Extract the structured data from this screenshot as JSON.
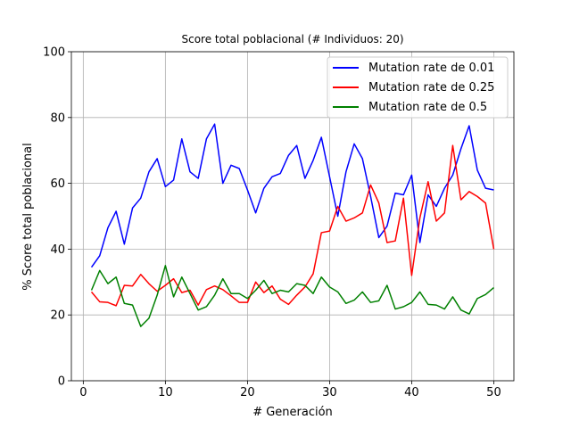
{
  "chart_data": {
    "type": "line",
    "title": "Score total poblacional (# Individuos: 20)",
    "xlabel": "# Generación",
    "ylabel": "% Score total poblacional",
    "xlim": [
      -1.45,
      52.45
    ],
    "ylim": [
      0,
      100
    ],
    "xticks": [
      0,
      10,
      20,
      30,
      40,
      50
    ],
    "yticks": [
      0,
      20,
      40,
      60,
      80,
      100
    ],
    "grid": true,
    "legend_position": "top-right",
    "x": [
      1,
      2,
      3,
      4,
      5,
      6,
      7,
      8,
      9,
      10,
      11,
      12,
      13,
      14,
      15,
      16,
      17,
      18,
      19,
      20,
      21,
      22,
      23,
      24,
      25,
      26,
      27,
      28,
      29,
      30,
      31,
      32,
      33,
      34,
      35,
      36,
      37,
      38,
      39,
      40,
      41,
      42,
      43,
      44,
      45,
      46,
      47,
      48,
      49,
      50
    ],
    "series": [
      {
        "name": "Mutation rate de 0.01",
        "color": "#0000ff",
        "values": [
          34.5,
          38,
          46.5,
          51.5,
          41.5,
          52.5,
          55.5,
          63.5,
          67.5,
          59,
          61,
          73.5,
          63.5,
          61.5,
          73.5,
          78,
          60,
          65.5,
          64.5,
          58,
          51,
          58.5,
          62,
          63,
          68.5,
          71.5,
          61.5,
          67,
          74,
          62,
          50,
          63.5,
          72,
          67.5,
          56,
          43.5,
          47,
          57,
          56.5,
          62.5,
          42,
          56.5,
          53,
          58.5,
          62.5,
          70.5,
          77.5,
          64,
          58.5,
          58
        ]
      },
      {
        "name": "Mutation rate de 0.25",
        "color": "#ff0000",
        "values": [
          27,
          24,
          23.8,
          22.8,
          29,
          28.8,
          32.3,
          29.5,
          27.2,
          29,
          31,
          26.8,
          27.5,
          23,
          27.7,
          28.8,
          27.7,
          25.8,
          23.8,
          23.8,
          30,
          26.8,
          28.8,
          24.8,
          23.2,
          26,
          28.5,
          32.5,
          45,
          45.5,
          53,
          48.5,
          49.5,
          51,
          59.5,
          54,
          42,
          42.5,
          55.5,
          32,
          49.5,
          60.5,
          48.5,
          51,
          71.5,
          55,
          57.5,
          56,
          54,
          40
        ]
      },
      {
        "name": "Mutation rate de 0.5",
        "color": "#008000",
        "values": [
          27.5,
          33.5,
          29.5,
          31.5,
          23.5,
          23,
          16.5,
          19,
          26,
          35,
          25.5,
          31.5,
          26.5,
          21.5,
          22.5,
          26,
          31,
          26.5,
          26.5,
          25,
          27.5,
          30.5,
          26.5,
          27.5,
          27,
          29.5,
          29,
          26.5,
          31.5,
          28.5,
          27,
          23.5,
          24.5,
          27,
          23.8,
          24.3,
          29,
          21.8,
          22.5,
          23.8,
          27,
          23.2,
          23,
          21.8,
          25.5,
          21.5,
          20.3,
          25,
          26.2,
          28.3
        ]
      }
    ]
  }
}
